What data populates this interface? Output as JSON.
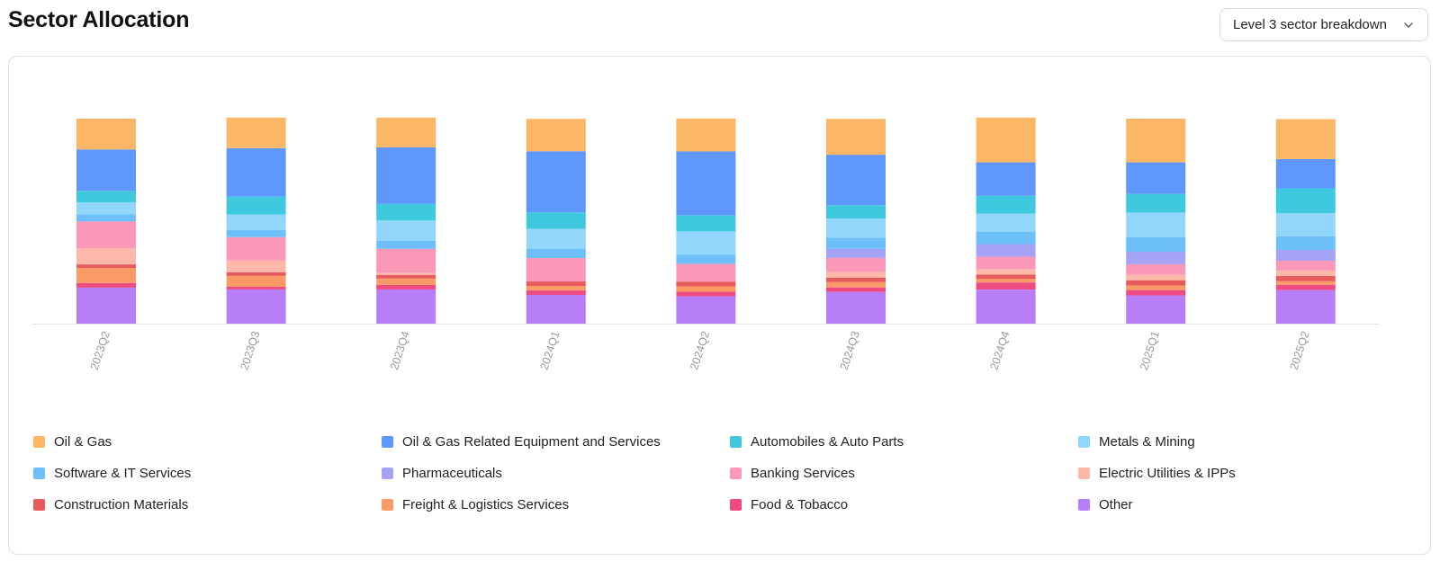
{
  "header": {
    "title": "Sector Allocation"
  },
  "controls": {
    "breakdown_label": "Level 3 sector breakdown",
    "breakdown_icon": "chevron-down-icon"
  },
  "chart_data": {
    "type": "bar",
    "stacked": true,
    "normalized_percent": true,
    "title": "",
    "xlabel": "",
    "ylabel": "",
    "ylim": [
      0,
      100
    ],
    "grid": false,
    "legend_position": "bottom",
    "categories": [
      "2023Q2",
      "2023Q3",
      "2023Q4",
      "2024Q1",
      "2024Q2",
      "2024Q3",
      "2024Q4",
      "2025Q1",
      "2025Q2"
    ],
    "series": [
      {
        "name": "Oil & Gas",
        "color": "#fbb765",
        "values": [
          15.0,
          14.9,
          14.5,
          15.8,
          16.1,
          17.5,
          21.8,
          21.3,
          19.5
        ]
      },
      {
        "name": "Oil & Gas Related Equipment and Services",
        "color": "#5f97fd",
        "values": [
          20.2,
          23.6,
          27.6,
          29.8,
          31.1,
          24.6,
          16.3,
          15.4,
          14.3
        ]
      },
      {
        "name": "Automobiles & Auto Parts",
        "color": "#3ec9df",
        "values": [
          5.7,
          8.8,
          8.1,
          8.0,
          7.9,
          6.6,
          8.7,
          9.1,
          12.1
        ]
      },
      {
        "name": "Metals & Mining",
        "color": "#93d6fb",
        "values": [
          5.7,
          7.5,
          9.9,
          9.9,
          11.4,
          9.2,
          8.8,
          12.1,
          11.3
        ]
      },
      {
        "name": "Software & IT Services",
        "color": "#6cbff8",
        "values": [
          3.5,
          3.5,
          3.9,
          4.4,
          4.4,
          5.5,
          6.1,
          7.0,
          6.6
        ]
      },
      {
        "name": "Pharmaceuticals",
        "color": "#a5a3f5",
        "values": [
          0.0,
          0.0,
          0.0,
          0.0,
          0.0,
          4.4,
          6.1,
          6.1,
          5.3
        ]
      },
      {
        "name": "Banking Services",
        "color": "#fb98b8",
        "values": [
          13.1,
          11.4,
          11.8,
          11.4,
          8.8,
          7.0,
          6.1,
          5.2,
          4.8
        ]
      },
      {
        "name": "Electric Utilities & IPPs",
        "color": "#fdb8aa",
        "values": [
          7.9,
          5.7,
          0.9,
          0.0,
          0.0,
          2.6,
          2.6,
          2.6,
          2.6
        ]
      },
      {
        "name": "Construction Materials",
        "color": "#e75b5d",
        "values": [
          1.7,
          1.8,
          1.8,
          2.2,
          2.2,
          2.2,
          2.2,
          2.6,
          2.6
        ]
      },
      {
        "name": "Freight & Logistics Services",
        "color": "#fa9a66",
        "values": [
          7.4,
          5.3,
          3.1,
          2.2,
          2.6,
          2.6,
          1.7,
          2.2,
          1.7
        ]
      },
      {
        "name": "Food & Tobacco",
        "color": "#ee4b82",
        "values": [
          2.2,
          1.3,
          2.2,
          2.2,
          2.2,
          2.2,
          3.5,
          2.6,
          2.6
        ]
      },
      {
        "name": "Other",
        "color": "#b87ef7",
        "values": [
          17.6,
          16.7,
          16.7,
          14.0,
          13.4,
          15.5,
          16.6,
          13.8,
          16.4
        ]
      }
    ]
  }
}
